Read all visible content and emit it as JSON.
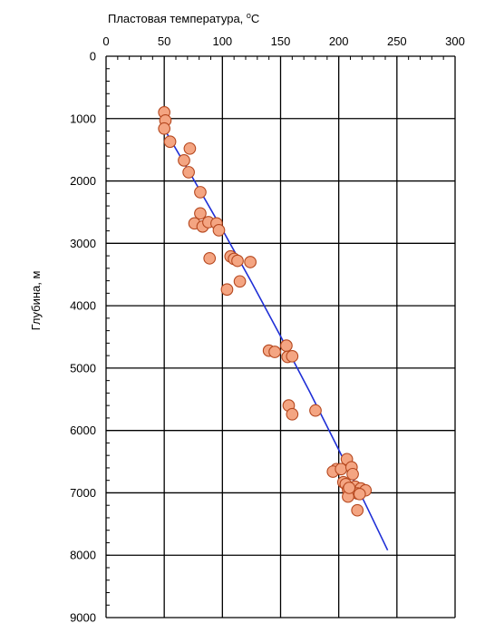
{
  "chart_data": {
    "type": "scatter",
    "title": "",
    "xlabel": {
      "prefix": "Пластовая температура, ",
      "superscript": "о",
      "suffix": "С"
    },
    "ylabel": "Глубина, м",
    "x_axis_position": "top",
    "y_axis_inverted": true,
    "xlim": [
      0,
      300
    ],
    "ylim": [
      0,
      9000
    ],
    "x_ticks": [
      0,
      50,
      100,
      150,
      200,
      250,
      300
    ],
    "y_ticks": [
      0,
      1000,
      2000,
      3000,
      4000,
      5000,
      6000,
      7000,
      8000,
      9000
    ],
    "grid": true,
    "marker_color": "#F4A582",
    "marker_edge_color": "#B5471E",
    "line_color": "#1F2FD6",
    "series": [
      {
        "type": "scatter",
        "x": [
          50,
          51,
          50,
          55,
          67,
          72,
          71,
          81,
          81,
          76,
          83,
          88,
          95,
          97,
          89,
          107,
          110,
          113,
          124,
          104,
          115,
          140,
          145,
          155,
          156,
          160,
          157,
          160,
          180,
          198,
          195,
          202,
          207,
          211,
          204,
          212,
          206,
          214,
          208,
          219,
          216,
          223,
          218,
          216,
          208,
          209
        ],
        "y": [
          900,
          1030,
          1160,
          1370,
          1670,
          1480,
          1860,
          2180,
          2520,
          2680,
          2730,
          2660,
          2680,
          2790,
          3240,
          3210,
          3250,
          3280,
          3300,
          3740,
          3610,
          4720,
          4740,
          4640,
          4820,
          4810,
          5600,
          5740,
          5680,
          6620,
          6660,
          6620,
          6460,
          6590,
          6830,
          6700,
          6860,
          6900,
          6950,
          6930,
          7010,
          6960,
          7020,
          7280,
          7060,
          6920
        ]
      },
      {
        "type": "line",
        "x": [
          48,
          72,
          100,
          125,
          150,
          175,
          200,
          225,
          242
        ],
        "y": [
          1100,
          1870,
          2780,
          3620,
          4490,
          5380,
          6310,
          7260,
          7920
        ]
      }
    ]
  }
}
